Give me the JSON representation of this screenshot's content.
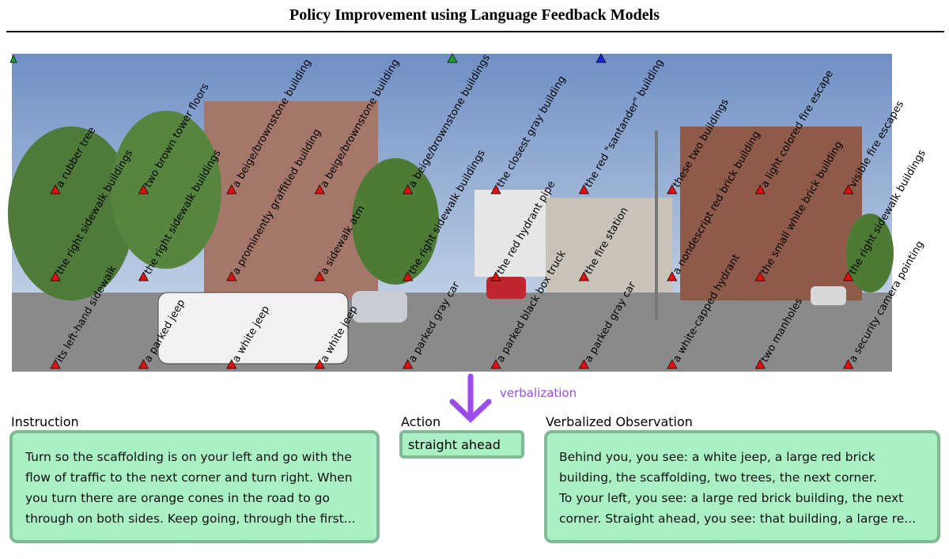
{
  "header": {
    "title": "Policy Improvement using Language Feedback Models"
  },
  "panorama": {
    "labels": [
      [
        "a rubber tree",
        "the right sidewalk buildings",
        "its left-hand sidewalk"
      ],
      [
        "two brown tower floors",
        "the right sidewalk buildings",
        "a parked jeep"
      ],
      [
        "a beige/brownstone building",
        "a prominently graffitied building",
        "a white jeep"
      ],
      [
        "a beige/brownstone building",
        "a sidewalk atm",
        "a white jeep"
      ],
      [
        "a beige/brownstone buildings",
        "the right sidewalk buildings",
        "a parked gray car"
      ],
      [
        "the closest gray building",
        "the red hydrant pipe",
        "a parked black box truck"
      ],
      [
        "the red \"santander\" building",
        "the fire station",
        "a parked gray car"
      ],
      [
        "these two buildings",
        "a nondescript red brick building",
        "a white-capped hydrant"
      ],
      [
        "a light colored fire escape",
        "the small white brick building",
        "two manholes"
      ],
      [
        "visible fire escapes",
        "the right sidewalk buildings",
        "a security camera pointing"
      ]
    ]
  },
  "arrow_label": "verbalization",
  "instruction": {
    "heading": "Instruction",
    "lines": [
      "Turn so the scaffolding is on your left and go with the",
      "flow of traffic to the next corner and turn right. When",
      "you turn there are orange cones in the road to go",
      "through on both sides. Keep going, through the first..."
    ]
  },
  "action": {
    "heading": "Action",
    "text": "straight ahead"
  },
  "observation": {
    "heading": "Verbalized Observation",
    "lines": [
      "Behind you, you see: a white jeep, a large red brick",
      "building, the scaffolding, two trees, the next corner.",
      "To your left, you see: a large red brick building, the next",
      "corner. Straight ahead, you see: that building, a large re..."
    ]
  }
}
